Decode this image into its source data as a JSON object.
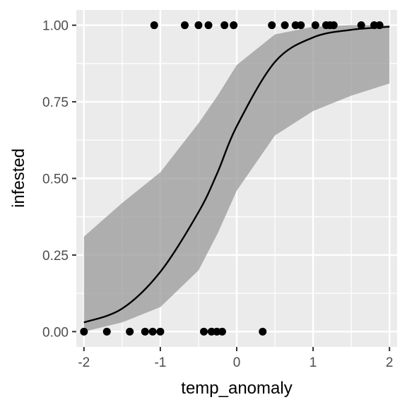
{
  "chart_data": {
    "type": "scatter",
    "xlabel": "temp_anomaly",
    "ylabel": "infested",
    "xlim": [
      -2.1,
      2.1
    ],
    "ylim": [
      -0.05,
      1.05
    ],
    "x_ticks": [
      -2,
      -1,
      0,
      1,
      2
    ],
    "x_tick_labels": [
      "-2",
      "-1",
      "0",
      "1",
      "2"
    ],
    "y_ticks": [
      0,
      0.25,
      0.5,
      0.75,
      1
    ],
    "y_tick_labels": [
      "0.00",
      "0.25",
      "0.50",
      "0.75",
      "1.00"
    ],
    "grid": true,
    "points": [
      {
        "x": -2.0,
        "y": 0
      },
      {
        "x": -1.7,
        "y": 0
      },
      {
        "x": -1.4,
        "y": 0
      },
      {
        "x": -1.2,
        "y": 0
      },
      {
        "x": -1.1,
        "y": 0
      },
      {
        "x": -1.0,
        "y": 0
      },
      {
        "x": -0.43,
        "y": 0
      },
      {
        "x": -0.33,
        "y": 0
      },
      {
        "x": -0.26,
        "y": 0
      },
      {
        "x": -0.19,
        "y": 0
      },
      {
        "x": 0.34,
        "y": 0
      },
      {
        "x": -1.08,
        "y": 1
      },
      {
        "x": -0.68,
        "y": 1
      },
      {
        "x": -0.5,
        "y": 1
      },
      {
        "x": -0.37,
        "y": 1
      },
      {
        "x": -0.16,
        "y": 1
      },
      {
        "x": -0.04,
        "y": 1
      },
      {
        "x": 0.46,
        "y": 1
      },
      {
        "x": 0.63,
        "y": 1
      },
      {
        "x": 0.77,
        "y": 1
      },
      {
        "x": 0.84,
        "y": 1
      },
      {
        "x": 1.03,
        "y": 1
      },
      {
        "x": 1.17,
        "y": 1
      },
      {
        "x": 1.22,
        "y": 1
      },
      {
        "x": 1.27,
        "y": 1
      },
      {
        "x": 1.63,
        "y": 1
      },
      {
        "x": 1.8,
        "y": 1
      },
      {
        "x": 1.87,
        "y": 1
      }
    ],
    "fit": {
      "type": "logistic",
      "x": [
        -2,
        -1.5,
        -1,
        -0.5,
        -0.25,
        0,
        0.5,
        1,
        1.5,
        2
      ],
      "y": [
        0.03,
        0.075,
        0.195,
        0.39,
        0.52,
        0.67,
        0.88,
        0.96,
        0.985,
        0.995
      ],
      "ci_lower": [
        0.0,
        0.03,
        0.08,
        0.2,
        0.32,
        0.46,
        0.64,
        0.72,
        0.77,
        0.81
      ],
      "ci_upper": [
        0.31,
        0.42,
        0.52,
        0.68,
        0.77,
        0.87,
        0.97,
        0.995,
        1.0,
        1.0
      ]
    }
  }
}
